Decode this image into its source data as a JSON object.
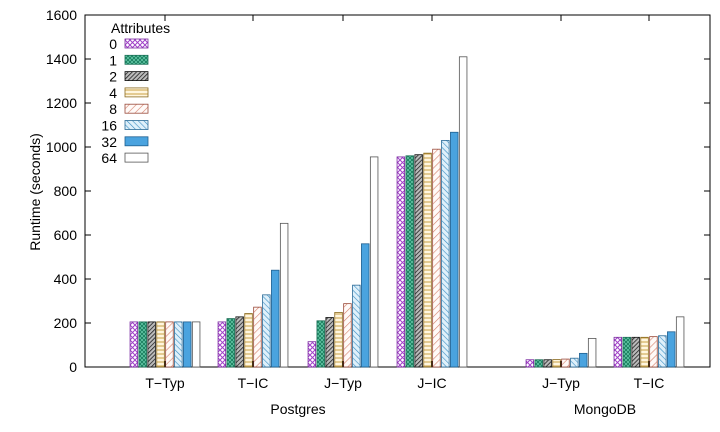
{
  "chart_data": {
    "type": "bar",
    "ylabel": "Runtime (seconds)",
    "ylim": [
      0,
      1600
    ],
    "yticks": [
      0,
      200,
      400,
      600,
      800,
      1000,
      1200,
      1400,
      1600
    ],
    "legend": {
      "title": "Attributes",
      "placement": "top-left"
    },
    "groups": [
      {
        "name": "Postgres",
        "categories": [
          "T−Typ",
          "T−IC",
          "J−Typ",
          "J−IC"
        ]
      },
      {
        "name": "MongoDB",
        "categories": [
          "J−Typ",
          "T−IC"
        ]
      }
    ],
    "series": [
      {
        "name": "0",
        "pattern": "crosshatch",
        "color": "#9b3fc0",
        "values": [
          205,
          205,
          115,
          955,
          33,
          135
        ]
      },
      {
        "name": "1",
        "pattern": "crosshatch",
        "color": "#1d9e77",
        "values": [
          205,
          220,
          210,
          960,
          33,
          135
        ]
      },
      {
        "name": "2",
        "pattern": "diag-dense",
        "color": "#333333",
        "values": [
          205,
          228,
          225,
          965,
          33,
          135
        ]
      },
      {
        "name": "4",
        "pattern": "horizontal",
        "color": "#c8a046",
        "values": [
          205,
          243,
          248,
          972,
          34,
          135
        ]
      },
      {
        "name": "8",
        "pattern": "diag",
        "color": "#d4806a",
        "values": [
          205,
          272,
          288,
          990,
          36,
          138
        ]
      },
      {
        "name": "16",
        "pattern": "diag-blue",
        "color": "#3a8fc4",
        "values": [
          205,
          328,
          372,
          1030,
          40,
          142
        ]
      },
      {
        "name": "32",
        "pattern": "solid",
        "color": "#4aa3df",
        "values": [
          205,
          440,
          560,
          1067,
          62,
          160
        ]
      },
      {
        "name": "64",
        "pattern": "empty",
        "color": "#555555",
        "values": [
          205,
          653,
          955,
          1410,
          130,
          228
        ]
      }
    ]
  }
}
